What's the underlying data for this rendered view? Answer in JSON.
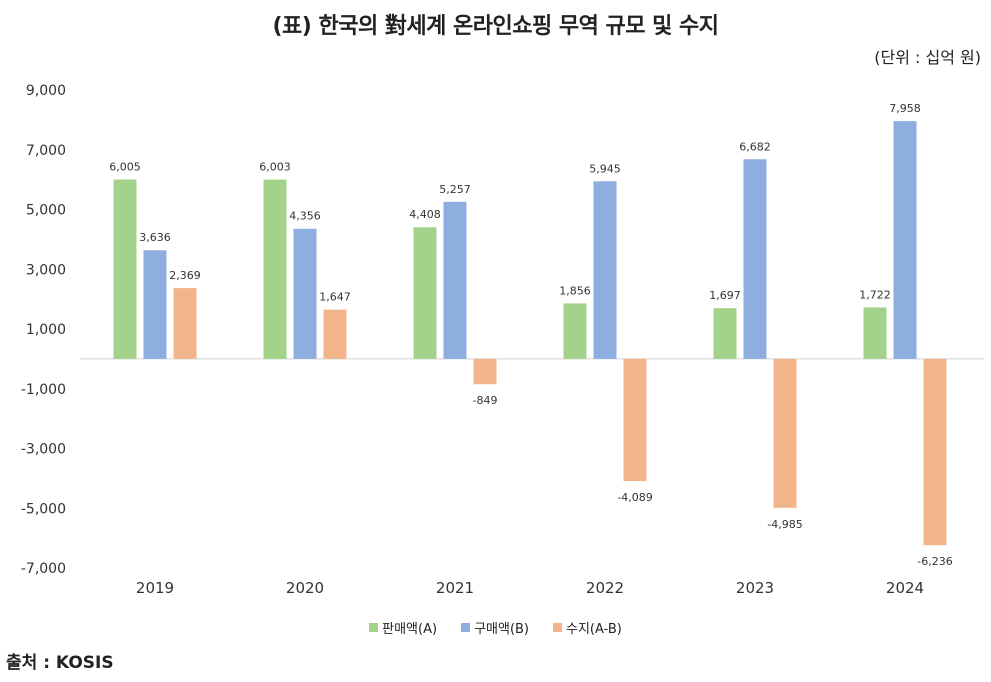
{
  "title": "(표) 한국의 對세계 온라인쇼핑 무역 규모 및 수지",
  "unit": "(단위 : 십억 원)",
  "source": "출처 : KOSIS",
  "colors": {
    "sales": "#a3d38a",
    "purchase": "#8eaee0",
    "balance": "#f2b48a"
  },
  "chart_data": {
    "type": "bar",
    "title": "(표) 한국의 對세계 온라인쇼핑 무역 규모 및 수지",
    "ylabel": "",
    "xlabel": "",
    "ylim": [
      -7000,
      9000
    ],
    "yticks": [
      "9,000",
      "7,000",
      "5,000",
      "3,000",
      "1,000",
      "-1,000",
      "-3,000",
      "-5,000",
      "-7,000"
    ],
    "ytick_values": [
      9000,
      7000,
      5000,
      3000,
      1000,
      -1000,
      -3000,
      -5000,
      -7000
    ],
    "categories": [
      "2019",
      "2020",
      "2021",
      "2022",
      "2023",
      "2024"
    ],
    "series": [
      {
        "name": "판매액(A)",
        "values": [
          6005,
          6003,
          4408,
          1856,
          1697,
          1722
        ],
        "labels": [
          "6,005",
          "6,003",
          "4,408",
          "1,856",
          "1,697",
          "1,722"
        ]
      },
      {
        "name": "구매액(B)",
        "values": [
          3636,
          4356,
          5257,
          5945,
          6682,
          7958
        ],
        "labels": [
          "3,636",
          "4,356",
          "5,257",
          "5,945",
          "6,682",
          "7,958"
        ]
      },
      {
        "name": "수지(A-B)",
        "values": [
          2369,
          1647,
          -849,
          -4089,
          -4985,
          -6236
        ],
        "labels": [
          "2,369",
          "1,647",
          "-849",
          "-4,089",
          "-4,985",
          "-6,236"
        ]
      }
    ],
    "legend_position": "bottom",
    "grid": false
  }
}
